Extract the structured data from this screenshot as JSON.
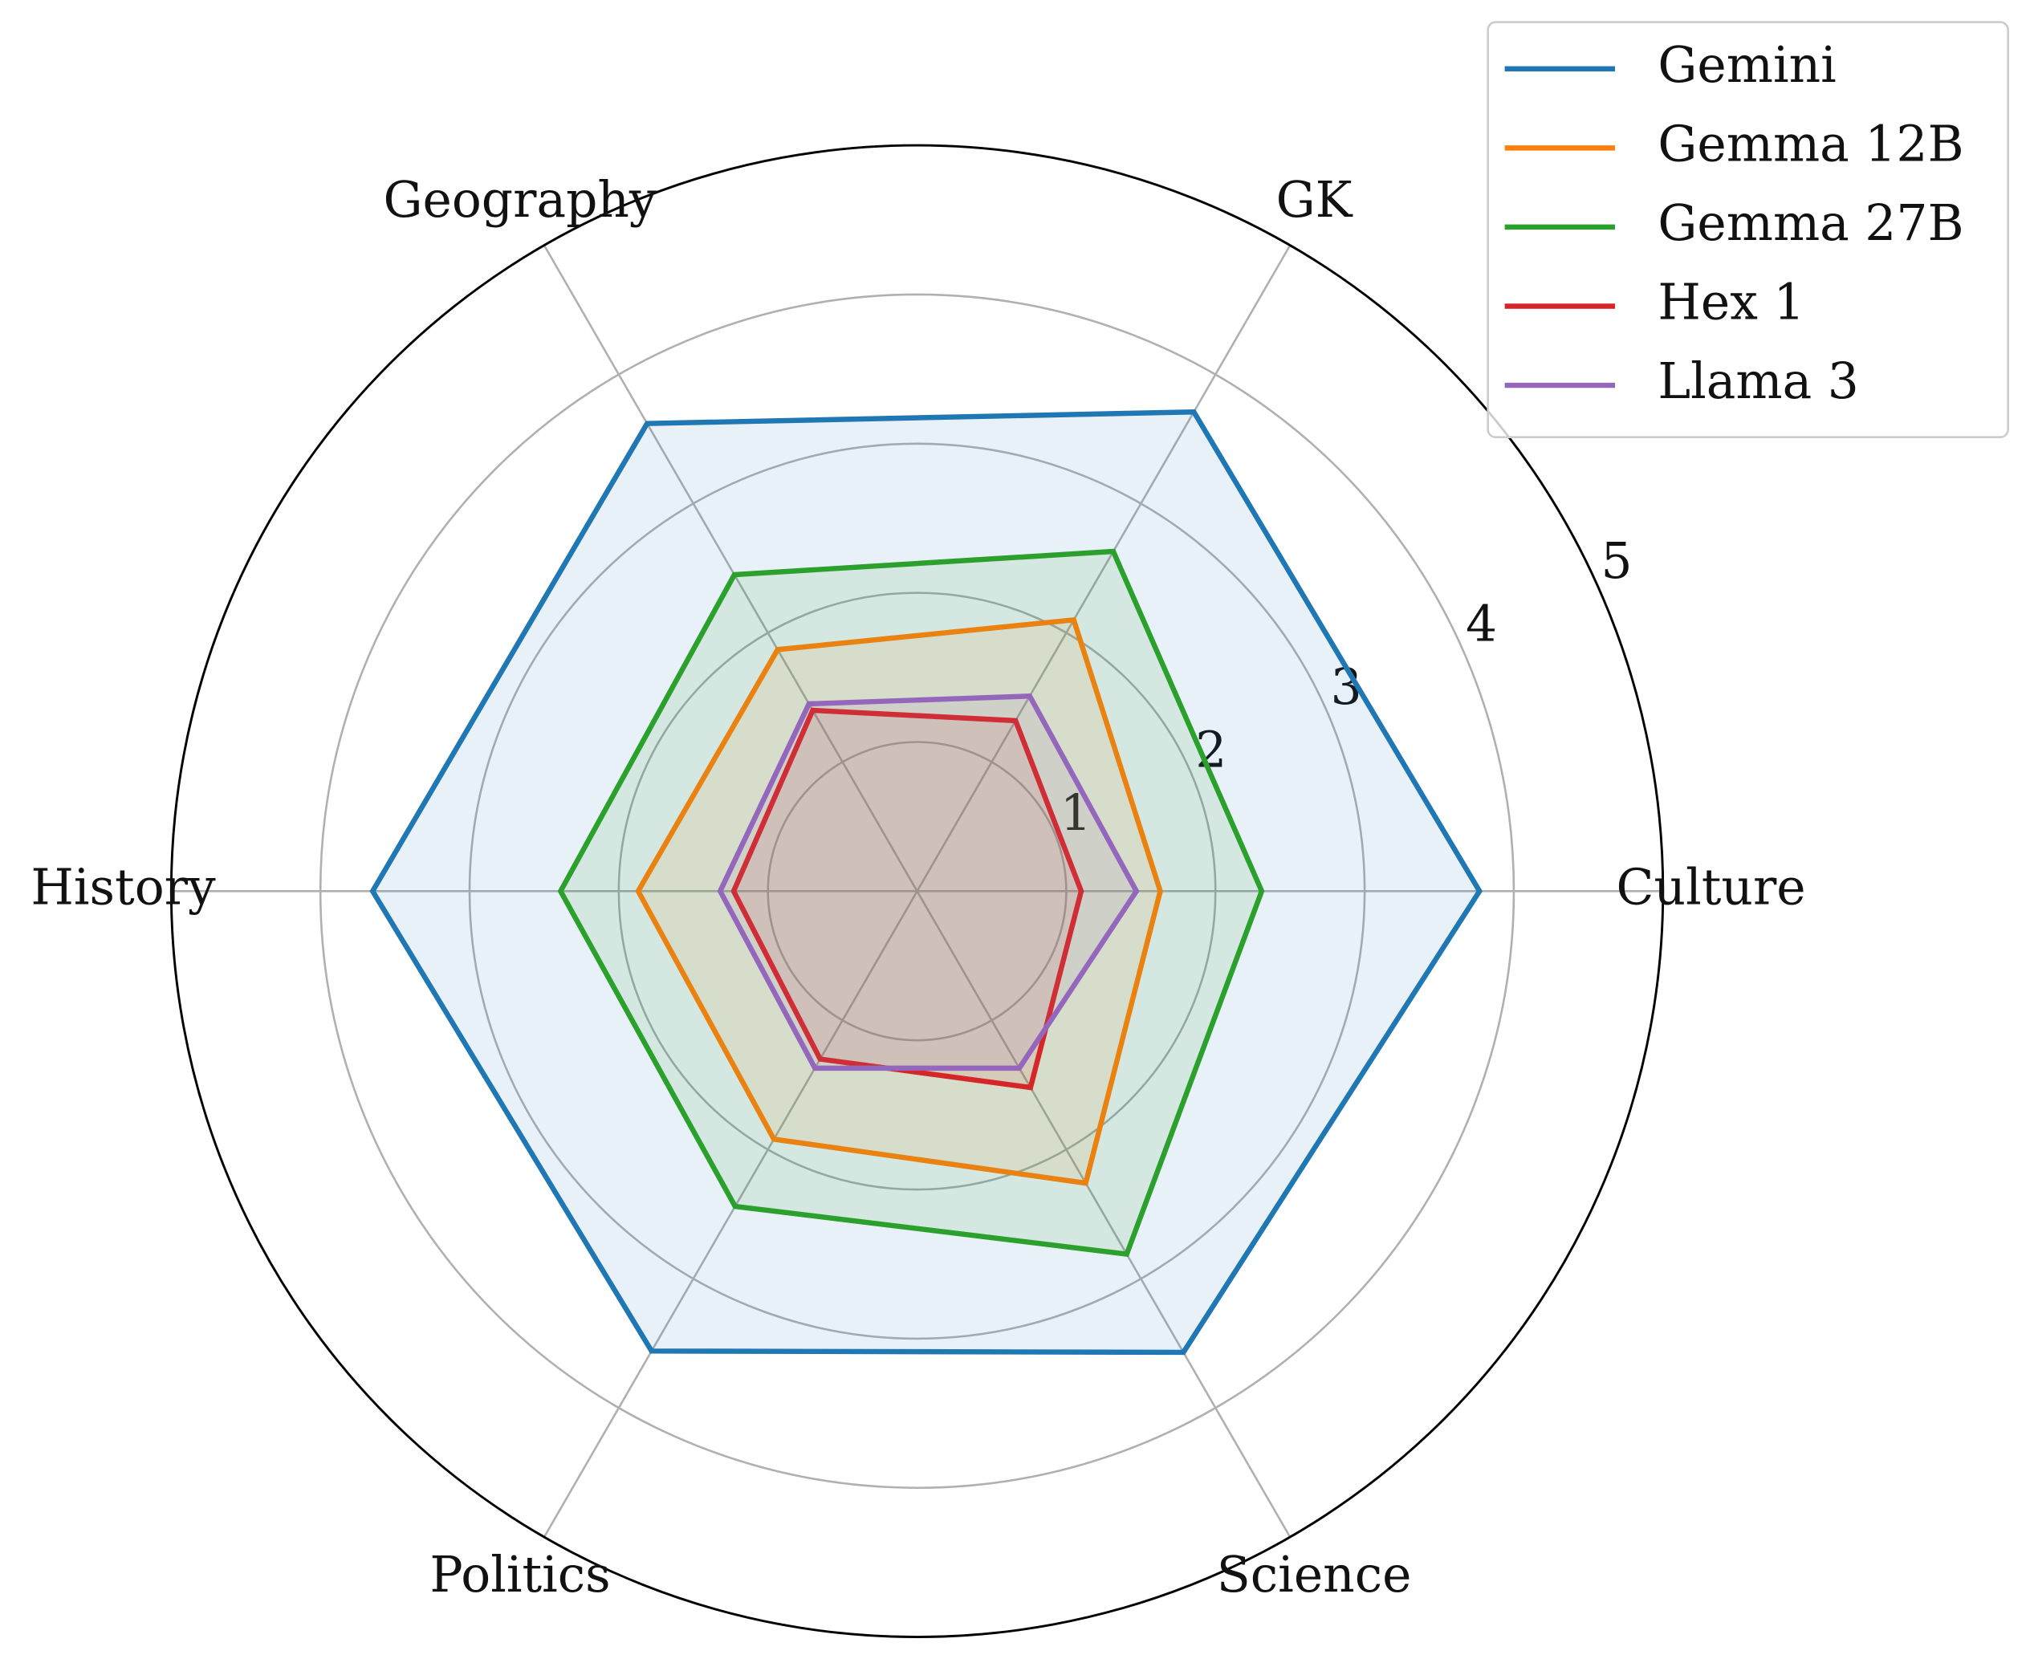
{
  "chart_data": {
    "type": "radar",
    "categories": [
      "Culture",
      "GK",
      "Geography",
      "History",
      "Politics",
      "Science"
    ],
    "series": [
      {
        "name": "Gemini",
        "color": "#1f77b4",
        "values": [
          3.77,
          3.71,
          3.62,
          3.65,
          3.56,
          3.57
        ]
      },
      {
        "name": "Gemma 12B",
        "color": "#ff7f0e",
        "values": [
          1.63,
          2.1,
          1.87,
          1.87,
          1.92,
          2.26
        ]
      },
      {
        "name": "Gemma 27B",
        "color": "#2ca02c",
        "values": [
          2.31,
          2.63,
          2.45,
          2.39,
          2.44,
          2.81
        ]
      },
      {
        "name": "Hex 1",
        "color": "#d62728",
        "values": [
          1.1,
          1.32,
          1.4,
          1.23,
          1.3,
          1.52
        ]
      },
      {
        "name": "Llama 3",
        "color": "#9467bd",
        "values": [
          1.47,
          1.51,
          1.45,
          1.32,
          1.37,
          1.37
        ]
      }
    ],
    "ylim": [
      0,
      5
    ],
    "yticks": [
      1,
      2,
      3,
      4,
      5
    ],
    "grid": true,
    "legend": "upper right"
  }
}
